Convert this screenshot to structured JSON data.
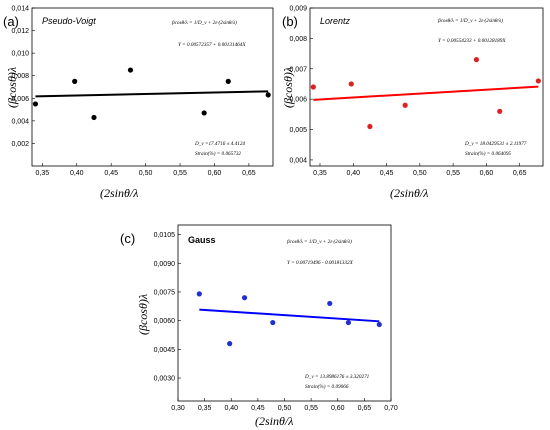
{
  "chart_data": [
    {
      "type": "scatter",
      "panel_label": "(a)",
      "title": "Pseudo-Voigt",
      "xlabel": "(2sinθ/λ",
      "ylabel": "(βcosθ)λ",
      "xticks": [
        "0,35",
        "0,40",
        "0,45",
        "0,50",
        "0,55",
        "0,60",
        "0,65"
      ],
      "yticks": [
        "0,002",
        "0,004",
        "0,006",
        "0,008",
        "0,010",
        "0,012",
        "0,014"
      ],
      "xlim": [
        0.335,
        0.685
      ],
      "ylim": [
        0.0,
        0.014
      ],
      "point_color": "#000000",
      "line_color": "#000000",
      "points": [
        {
          "x": 0.34,
          "y": 0.0055
        },
        {
          "x": 0.397,
          "y": 0.0075
        },
        {
          "x": 0.425,
          "y": 0.0043
        },
        {
          "x": 0.478,
          "y": 0.0085
        },
        {
          "x": 0.585,
          "y": 0.0047
        },
        {
          "x": 0.62,
          "y": 0.0075
        },
        {
          "x": 0.678,
          "y": 0.0063
        }
      ],
      "fit": {
        "intercept": 0.00572357,
        "slope": 0.00131464
      },
      "annotations": {
        "equation": "βcosθ/λ = 1/D_v + 2ε·(2sinθ/λ)",
        "fit_line": "Y = 0.00572357 + 0.00131464X",
        "size": "D_v =17.4716 ± 4.4124",
        "strain": "Strain(%) = 0.065732"
      }
    },
    {
      "type": "scatter",
      "panel_label": "(b)",
      "title": "Lorentz",
      "xlabel": "(2sinθ/λ",
      "ylabel": "(βcosθ)λ",
      "xticks": [
        "0,35",
        "0,40",
        "0,45",
        "0,50",
        "0,55",
        "0,60",
        "0,65"
      ],
      "yticks": [
        "0,004",
        "0,005",
        "0,006",
        "0,007",
        "0,008",
        "0,009"
      ],
      "xlim": [
        0.335,
        0.685
      ],
      "ylim": [
        0.0038,
        0.009
      ],
      "point_color": "#e02020",
      "line_color": "#ff0000",
      "points": [
        {
          "x": 0.34,
          "y": 0.0064
        },
        {
          "x": 0.397,
          "y": 0.0065
        },
        {
          "x": 0.425,
          "y": 0.0051
        },
        {
          "x": 0.478,
          "y": 0.0058
        },
        {
          "x": 0.585,
          "y": 0.0073
        },
        {
          "x": 0.62,
          "y": 0.0056
        },
        {
          "x": 0.678,
          "y": 0.0066
        }
      ],
      "fit": {
        "intercept": 0.00554233,
        "slope": 0.00128189
      },
      "annotations": {
        "equation": "βcosθ/λ = 1/D_v + 2ε·(2sinθ/λ)",
        "fit_line": "Y = 0.00554233 + 0.00128189X",
        "size": "D_v = 18.0429531 ± 2.11977",
        "strain": "Strain(%) = 0.064095"
      }
    },
    {
      "type": "scatter",
      "panel_label": "(c)",
      "title": "Gauss",
      "xlabel": "(2sinθ/λ",
      "ylabel": "(βcosθ)λ",
      "xticks": [
        "0,30",
        "0,35",
        "0,40",
        "0,45",
        "0,50",
        "0,55",
        "0,60",
        "0,65",
        "0,70"
      ],
      "yticks": [
        "0,0030",
        "0,0045",
        "0,0060",
        "0,0075",
        "0,0090",
        "0,0105"
      ],
      "xlim": [
        0.3,
        0.7
      ],
      "ylim": [
        0.0018,
        0.011
      ],
      "point_color": "#2030d0",
      "line_color": "#0000ff",
      "points": [
        {
          "x": 0.34,
          "y": 0.0074
        },
        {
          "x": 0.397,
          "y": 0.0048
        },
        {
          "x": 0.425,
          "y": 0.0072
        },
        {
          "x": 0.478,
          "y": 0.0059
        },
        {
          "x": 0.585,
          "y": 0.0069
        },
        {
          "x": 0.62,
          "y": 0.0059
        },
        {
          "x": 0.678,
          "y": 0.0058
        }
      ],
      "fit": {
        "intercept": 0.00719496,
        "slope": -0.00181332
      },
      "annotations": {
        "equation": "βcosθ/λ = 1/D_v + 2ε·(2sinθ/λ)",
        "fit_line": "Y = 0.00719496 - 0.00181332X",
        "size": "D_v = 13.8986176 ± 3.320271",
        "strain": "Strain(%) = 0.09066"
      }
    }
  ]
}
